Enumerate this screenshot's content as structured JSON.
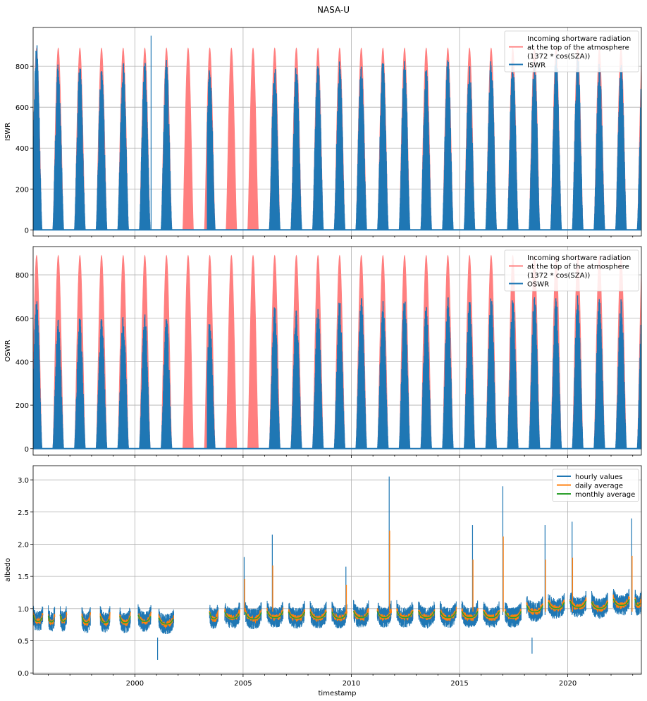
{
  "figure": {
    "title": "NASA-U"
  },
  "colors": {
    "blue": "#1f77b4",
    "orange": "#ff7f0e",
    "green": "#2ca02c",
    "toa": "#ff7f7f",
    "grid": "#b0b0b0"
  },
  "chart_data": [
    {
      "type": "line",
      "ylabel": "ISWR",
      "xlim": [
        1995.3,
        2023.4
      ],
      "ylim": [
        -30,
        990
      ],
      "yticks": [
        "0",
        "200",
        "400",
        "600",
        "800"
      ],
      "xticks": [
        2000,
        2005,
        2010,
        2015,
        2020
      ],
      "grid": true,
      "legend": {
        "placement": "top-right",
        "entries": [
          {
            "label": "Incoming shortware radiation\nat the top of the atmosphere\n(1372 * cos(SZA))",
            "color": "#ff7f7f"
          },
          {
            "label": "ISWR",
            "color": "#1f77b4"
          }
        ]
      },
      "series": [
        {
          "name": "Incoming shortware radiation at the top of the atmosphere (1372 * cos(SZA))",
          "kind": "toa",
          "annual_peak": 890
        },
        {
          "name": "ISWR",
          "kind": "obs",
          "peaks": [
            920,
            820,
            810,
            815,
            835,
            830,
            840,
            820,
            810,
            0,
            0,
            810,
            820,
            850,
            830,
            820,
            835,
            840,
            800,
            850,
            815,
            840,
            850,
            850,
            870,
            860,
            820,
            830,
            840,
            840
          ],
          "spike": {
            "x": 2000.75,
            "y": 950
          }
        }
      ],
      "gaps": [
        [
          1995.9,
          1996.15
        ],
        [
          1996.9,
          1997.15
        ],
        [
          2001.85,
          2003.35
        ]
      ]
    },
    {
      "type": "line",
      "ylabel": "OSWR",
      "xlim": [
        1995.3,
        2023.4
      ],
      "ylim": [
        -30,
        930
      ],
      "yticks": [
        "0",
        "200",
        "400",
        "600",
        "800"
      ],
      "xticks": [
        2000,
        2005,
        2010,
        2015,
        2020
      ],
      "grid": true,
      "legend": {
        "placement": "top-right",
        "entries": [
          {
            "label": "Incoming shortware radiation\nat the top of the atmosphere\n(1372 * cos(SZA))",
            "color": "#ff7f7f"
          },
          {
            "label": "OSWR",
            "color": "#1f77b4"
          }
        ]
      },
      "series": [
        {
          "name": "Incoming shortware radiation at the top of the atmosphere (1372 * cos(SZA))",
          "kind": "toa",
          "annual_peak": 890
        },
        {
          "name": "OSWR",
          "kind": "obs",
          "peaks": [
            690,
            600,
            610,
            600,
            610,
            620,
            610,
            600,
            600,
            0,
            0,
            660,
            640,
            660,
            690,
            700,
            680,
            700,
            660,
            710,
            690,
            700,
            700,
            720,
            700,
            710,
            700,
            690,
            720,
            730
          ]
        }
      ],
      "gaps": [
        [
          1995.9,
          1996.15
        ],
        [
          1996.9,
          1997.15
        ],
        [
          2001.85,
          2003.35
        ]
      ]
    },
    {
      "type": "line",
      "ylabel": "albedo",
      "xlabel": "timestamp",
      "xlim": [
        1995.3,
        2023.4
      ],
      "ylim": [
        -0.02,
        3.22
      ],
      "yticks": [
        "0.0",
        "0.5",
        "1.0",
        "1.5",
        "2.0",
        "2.5",
        "3.0"
      ],
      "xticks": [
        2000,
        2005,
        2010,
        2015,
        2020
      ],
      "grid": true,
      "legend": {
        "placement": "top-right",
        "entries": [
          {
            "label": "hourly values",
            "color": "#1f77b4"
          },
          {
            "label": "daily average",
            "color": "#ff7f0e"
          },
          {
            "label": "monthly average",
            "color": "#2ca02c"
          }
        ]
      },
      "series": [
        {
          "name": "hourly values",
          "resolution": "hourly"
        },
        {
          "name": "daily average",
          "resolution": "daily"
        },
        {
          "name": "monthly average",
          "resolution": "monthly"
        }
      ],
      "seasons": [
        {
          "start": 1995.3,
          "end": 1995.75,
          "level": 0.8
        },
        {
          "start": 1996.0,
          "end": 1996.3,
          "level": 0.79
        },
        {
          "start": 1996.55,
          "end": 1996.85,
          "level": 0.8
        },
        {
          "start": 1997.55,
          "end": 1997.95,
          "level": 0.78
        },
        {
          "start": 1998.4,
          "end": 1998.85,
          "level": 0.78
        },
        {
          "start": 1999.3,
          "end": 1999.8,
          "level": 0.78
        },
        {
          "start": 2000.15,
          "end": 2000.75,
          "level": 0.8
        },
        {
          "start": 2001.1,
          "end": 2001.8,
          "level": 0.76
        },
        {
          "start": 2003.45,
          "end": 2003.85,
          "level": 0.84
        },
        {
          "start": 2004.15,
          "end": 2004.85,
          "level": 0.85
        },
        {
          "start": 2005.1,
          "end": 2005.85,
          "level": 0.84
        },
        {
          "start": 2006.1,
          "end": 2006.85,
          "level": 0.86
        },
        {
          "start": 2007.1,
          "end": 2007.85,
          "level": 0.85
        },
        {
          "start": 2008.1,
          "end": 2008.85,
          "level": 0.85
        },
        {
          "start": 2009.1,
          "end": 2009.8,
          "level": 0.85
        },
        {
          "start": 2010.1,
          "end": 2010.8,
          "level": 0.86
        },
        {
          "start": 2011.2,
          "end": 2011.85,
          "level": 0.86
        },
        {
          "start": 2012.1,
          "end": 2012.85,
          "level": 0.86
        },
        {
          "start": 2013.1,
          "end": 2013.85,
          "level": 0.86
        },
        {
          "start": 2014.1,
          "end": 2014.85,
          "level": 0.86
        },
        {
          "start": 2015.1,
          "end": 2015.85,
          "level": 0.86
        },
        {
          "start": 2016.1,
          "end": 2016.85,
          "level": 0.86
        },
        {
          "start": 2017.1,
          "end": 2017.85,
          "level": 0.86
        },
        {
          "start": 2018.1,
          "end": 2018.85,
          "level": 0.95
        },
        {
          "start": 2019.1,
          "end": 2019.85,
          "level": 1.0
        },
        {
          "start": 2020.1,
          "end": 2020.85,
          "level": 1.02
        },
        {
          "start": 2021.1,
          "end": 2021.85,
          "level": 1.0
        },
        {
          "start": 2022.1,
          "end": 2022.85,
          "level": 1.05
        },
        {
          "start": 2023.1,
          "end": 2023.4,
          "level": 1.05
        }
      ],
      "spikes": [
        {
          "x": 2005.05,
          "y": 1.8
        },
        {
          "x": 2006.35,
          "y": 2.15
        },
        {
          "x": 2009.75,
          "y": 1.65
        },
        {
          "x": 2011.75,
          "y": 3.05
        },
        {
          "x": 2015.6,
          "y": 2.3
        },
        {
          "x": 2017.0,
          "y": 2.9
        },
        {
          "x": 2018.95,
          "y": 2.3
        },
        {
          "x": 2020.2,
          "y": 2.35
        },
        {
          "x": 2022.95,
          "y": 2.4
        },
        {
          "x": 2001.05,
          "y": 0.2
        },
        {
          "x": 2018.35,
          "y": 0.3
        }
      ]
    }
  ]
}
